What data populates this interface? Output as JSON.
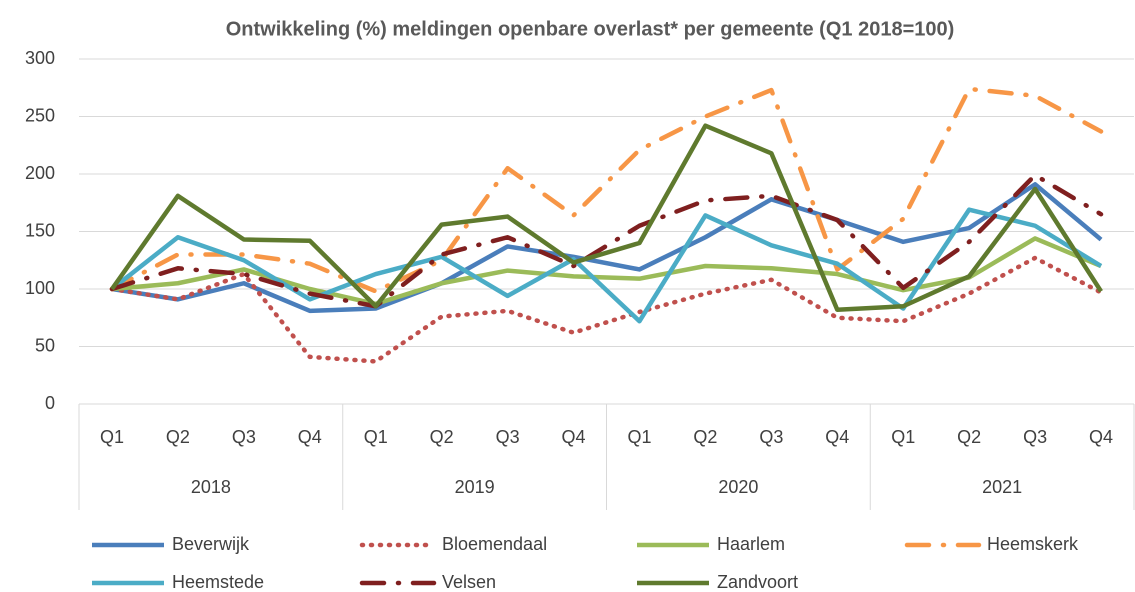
{
  "chart_data": {
    "type": "line",
    "title": "Ontwikkeling (%) meldingen openbare overlast* per gemeente (Q1 2018=100)",
    "categories": [
      "Q1",
      "Q2",
      "Q3",
      "Q4",
      "Q1",
      "Q2",
      "Q3",
      "Q4",
      "Q1",
      "Q2",
      "Q3",
      "Q4",
      "Q1",
      "Q2",
      "Q3",
      "Q4"
    ],
    "category_groups": [
      "2018",
      "2019",
      "2020",
      "2021"
    ],
    "ylim": [
      0,
      300
    ],
    "yticks": [
      0,
      50,
      100,
      150,
      200,
      250,
      300
    ],
    "grid": true,
    "legend": "bottom",
    "series": [
      {
        "name": "Beverwijk",
        "color": "#4a7ebb",
        "style": "solid",
        "values": [
          100,
          91,
          105,
          81,
          83,
          105,
          137,
          128,
          117,
          145,
          178,
          160,
          141,
          153,
          191,
          143
        ]
      },
      {
        "name": "Bloemendaal",
        "color": "#c0504d",
        "style": "dotted",
        "values": [
          100,
          91,
          113,
          41,
          37,
          76,
          81,
          62,
          80,
          96,
          108,
          75,
          72,
          96,
          127,
          97
        ]
      },
      {
        "name": "Haarlem",
        "color": "#9bbb59",
        "style": "solid",
        "values": [
          100,
          105,
          117,
          100,
          87,
          105,
          116,
          111,
          109,
          120,
          118,
          113,
          99,
          110,
          144,
          120
        ]
      },
      {
        "name": "Heemskerk",
        "color": "#f79646",
        "style": "dashdot",
        "values": [
          100,
          130,
          130,
          122,
          98,
          125,
          205,
          164,
          221,
          250,
          273,
          117,
          161,
          274,
          268,
          237
        ]
      },
      {
        "name": "Heemstede",
        "color": "#4bacc6",
        "style": "solid",
        "values": [
          100,
          145,
          125,
          91,
          113,
          128,
          94,
          126,
          72,
          164,
          138,
          122,
          83,
          169,
          155,
          120
        ]
      },
      {
        "name": "Velsen",
        "color": "#7f1f1f",
        "style": "dashdot",
        "values": [
          100,
          118,
          113,
          96,
          85,
          130,
          145,
          120,
          155,
          177,
          181,
          160,
          101,
          141,
          199,
          165
        ]
      },
      {
        "name": "Zandvoort",
        "color": "#5f7a2e",
        "style": "solid",
        "values": [
          100,
          181,
          143,
          142,
          85,
          156,
          163,
          123,
          140,
          242,
          218,
          82,
          85,
          111,
          187,
          98
        ]
      }
    ]
  }
}
